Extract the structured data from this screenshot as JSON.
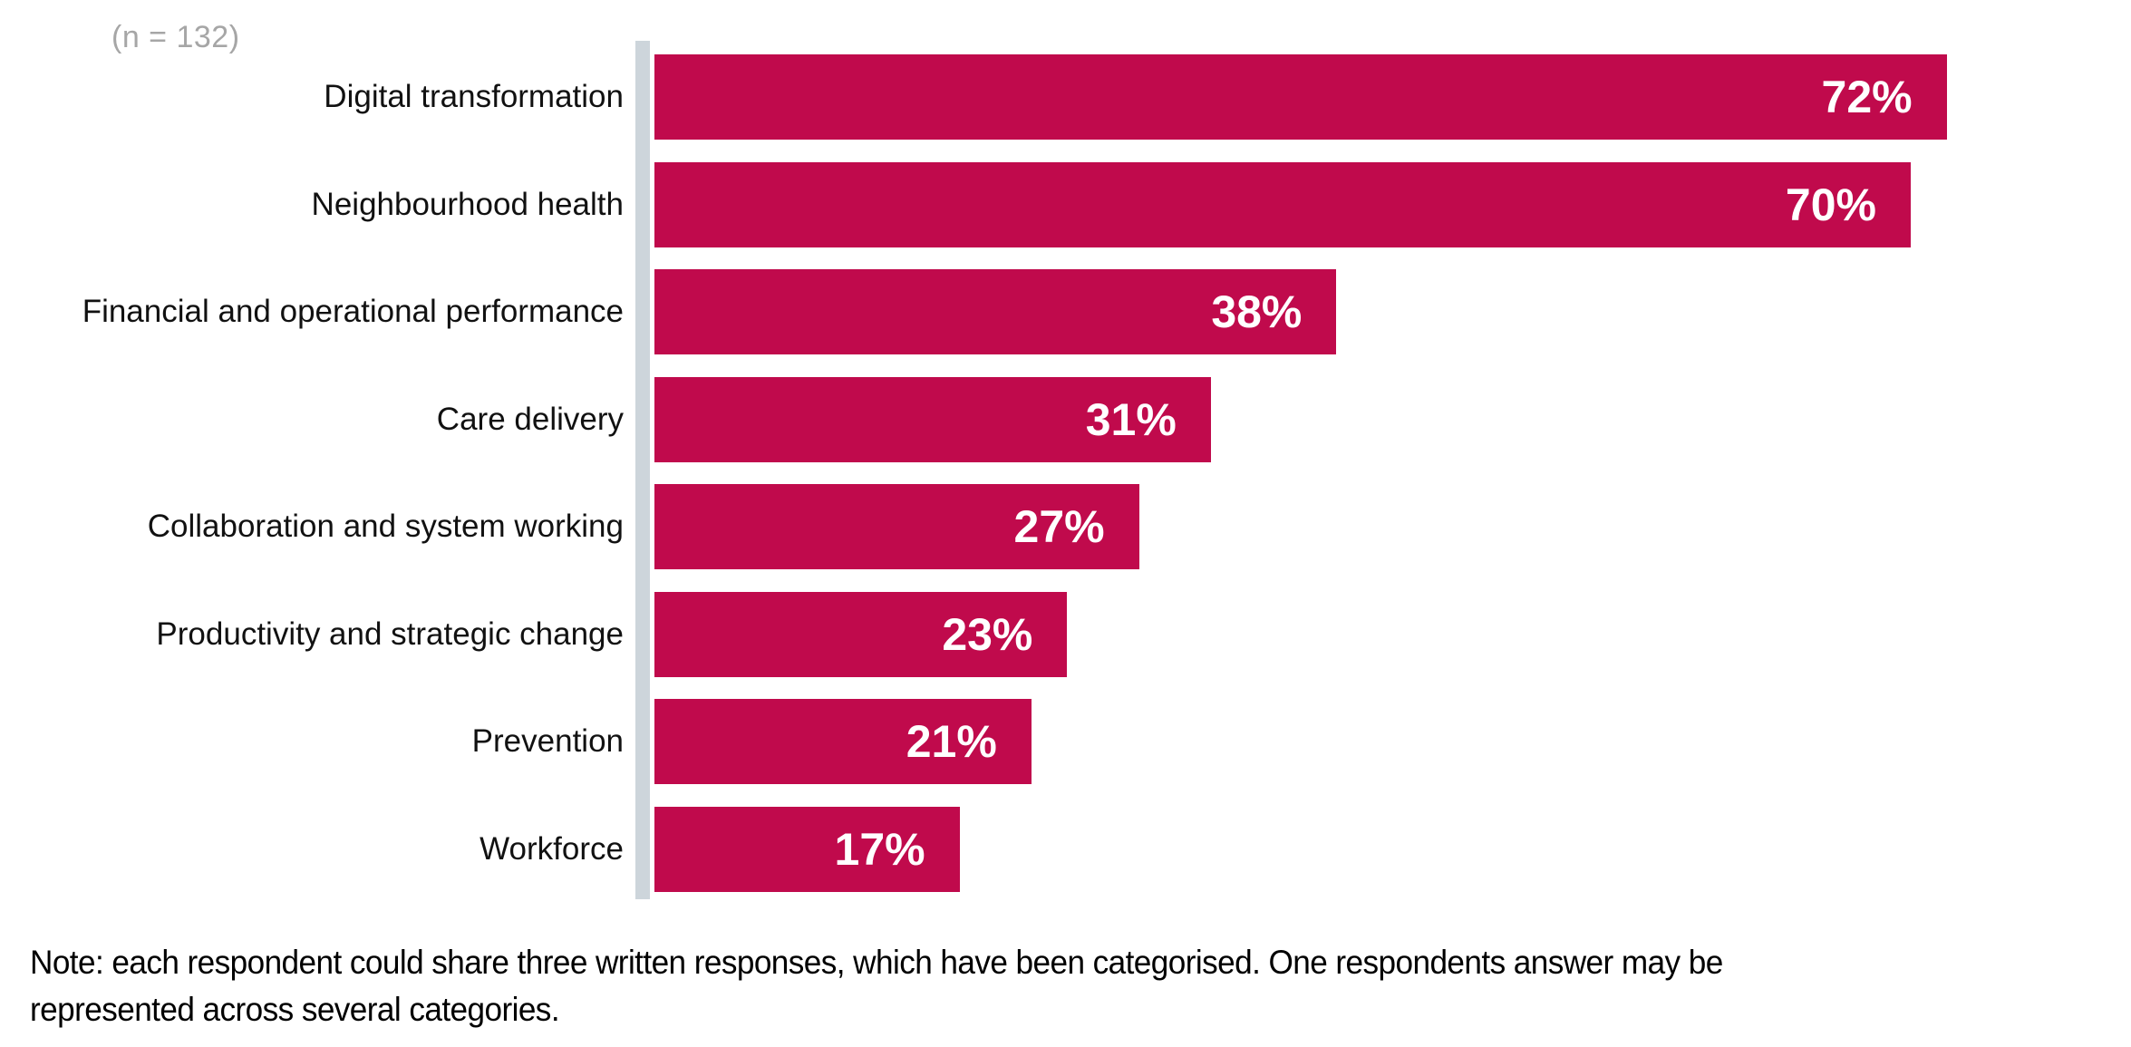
{
  "figure": {
    "n_label": "(n = 132)",
    "note_line1": "Note: each respondent could share three written responses, which have been categorised. One respondents answer may be",
    "note_line2": "represented across several categories."
  },
  "colors": {
    "bar": "#C00A4C",
    "axis_line": "#CDD5DB",
    "n_label_text": "#A6A6A6",
    "category_text": "#111111",
    "value_text": "#FFFFFF",
    "note_text": "#000000",
    "background": "#FFFFFF"
  },
  "chart_data": {
    "type": "bar",
    "orientation": "horizontal",
    "title": "",
    "n_annotation": "(n = 132)",
    "categories": [
      "Digital transformation",
      "Neighbourhood health",
      "Financial and operational performance",
      "Care delivery",
      "Collaboration and system working",
      "Productivity and strategic change",
      "Prevention",
      "Workforce"
    ],
    "values": [
      72,
      70,
      38,
      31,
      27,
      23,
      21,
      17
    ],
    "value_labels": [
      "72%",
      "70%",
      "38%",
      "31%",
      "27%",
      "23%",
      "21%",
      "17%"
    ],
    "value_format": "percent",
    "xlabel": "",
    "ylabel": "",
    "xlim": [
      0,
      82
    ],
    "grid": false,
    "legend": false,
    "data_labels_position": "inside-end",
    "note": "Note: each respondent could share three written responses, which have been categorised. One respondents answer may be represented across several categories."
  }
}
